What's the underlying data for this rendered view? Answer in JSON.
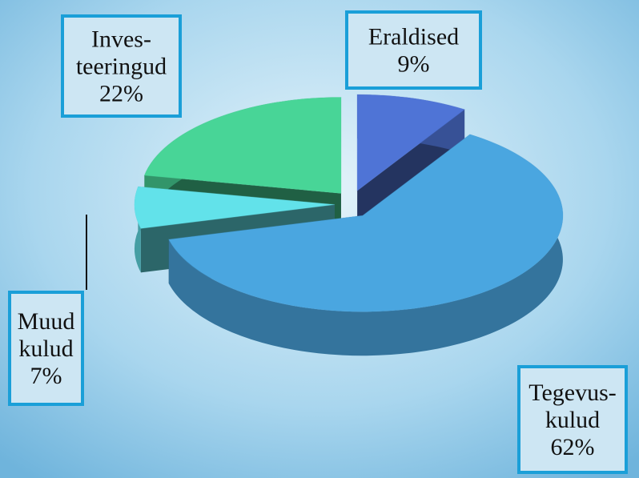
{
  "chart_data": {
    "type": "pie",
    "categories": [
      "Eraldised",
      "Tegevus-\nkulud",
      "Muud\nkulud",
      "Inves-\nteeringud"
    ],
    "values": [
      9,
      62,
      7,
      22
    ],
    "value_labels": [
      "9%",
      "62%",
      "7%",
      "22%"
    ],
    "colors": [
      "#4f74d6",
      "#4aa6e0",
      "#62e2ea",
      "#48d597"
    ],
    "explode": true
  }
}
